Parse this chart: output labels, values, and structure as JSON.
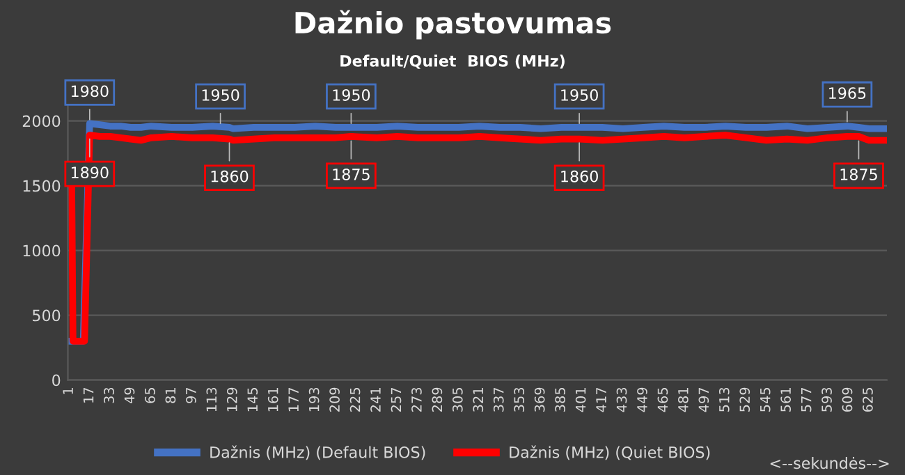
{
  "chart_data": {
    "type": "line",
    "title": "Dažnio pastovumas",
    "subtitle": "Default/Quiet  BIOS (MHz)",
    "xlabel": "<--sekundės-->",
    "xlim": [
      0,
      639
    ],
    "xticks": [
      1,
      17,
      33,
      49,
      65,
      81,
      97,
      113,
      129,
      145,
      161,
      177,
      193,
      209,
      225,
      241,
      257,
      273,
      289,
      305,
      321,
      337,
      353,
      369,
      385,
      401,
      417,
      433,
      449,
      465,
      481,
      497,
      513,
      529,
      545,
      561,
      577,
      593,
      609,
      625
    ],
    "ylim": [
      0,
      2200
    ],
    "yticks": [
      0,
      500,
      1000,
      1500,
      2000
    ],
    "grid": "y",
    "legend": "bottom",
    "marker": "none",
    "line_style": "solid",
    "series": [
      {
        "name": "Dažnis (MHz) (Default BIOS)",
        "color": "#4472c4",
        "x": [
          1,
          12,
          17,
          25,
          33,
          41,
          49,
          57,
          65,
          81,
          97,
          113,
          126,
          129,
          145,
          161,
          177,
          193,
          209,
          221,
          241,
          257,
          273,
          289,
          305,
          321,
          337,
          353,
          369,
          385,
          399,
          417,
          433,
          449,
          465,
          481,
          497,
          513,
          529,
          545,
          561,
          577,
          593,
          608,
          617,
          625,
          637
        ],
        "values": [
          300,
          300,
          1980,
          1970,
          1960,
          1960,
          1950,
          1950,
          1960,
          1950,
          1950,
          1960,
          1950,
          1940,
          1950,
          1950,
          1950,
          1960,
          1950,
          1950,
          1950,
          1960,
          1950,
          1950,
          1950,
          1960,
          1950,
          1950,
          1940,
          1950,
          1950,
          1950,
          1940,
          1950,
          1960,
          1950,
          1950,
          1960,
          1950,
          1950,
          1960,
          1940,
          1950,
          1960,
          1950,
          1940,
          1940
        ]
      },
      {
        "name": "Dažnis (MHz) (Quiet BIOS)",
        "color": "#ff0000",
        "x": [
          1,
          3,
          4,
          13,
          17,
          25,
          33,
          41,
          49,
          57,
          65,
          81,
          97,
          113,
          126,
          129,
          145,
          161,
          177,
          193,
          209,
          221,
          241,
          257,
          273,
          289,
          305,
          321,
          337,
          353,
          369,
          385,
          399,
          417,
          433,
          449,
          465,
          481,
          497,
          513,
          529,
          545,
          561,
          577,
          593,
          608,
          617,
          625,
          637
        ],
        "values": [
          1500,
          1500,
          300,
          300,
          1890,
          1880,
          1880,
          1870,
          1860,
          1850,
          1870,
          1880,
          1870,
          1870,
          1860,
          1850,
          1860,
          1870,
          1870,
          1870,
          1870,
          1880,
          1870,
          1880,
          1870,
          1870,
          1870,
          1880,
          1870,
          1860,
          1850,
          1860,
          1860,
          1850,
          1860,
          1870,
          1880,
          1870,
          1880,
          1890,
          1870,
          1850,
          1860,
          1850,
          1870,
          1880,
          1880,
          1850,
          1850
        ]
      }
    ],
    "annotations": [
      {
        "text": "1980",
        "x": 17,
        "y": 1980
      },
      {
        "text": "1890",
        "x": 17,
        "y": 1890
      },
      {
        "text": "1950",
        "x": 119,
        "y": 1950
      },
      {
        "text": "1860",
        "x": 126,
        "y": 1860
      },
      {
        "text": "1950",
        "x": 221,
        "y": 1950
      },
      {
        "text": "1875",
        "x": 221,
        "y": 1875
      },
      {
        "text": "1950",
        "x": 399,
        "y": 1950
      },
      {
        "text": "1860",
        "x": 399,
        "y": 1860
      },
      {
        "text": "1965",
        "x": 608,
        "y": 1965
      },
      {
        "text": "1875",
        "x": 617,
        "y": 1875
      }
    ]
  }
}
